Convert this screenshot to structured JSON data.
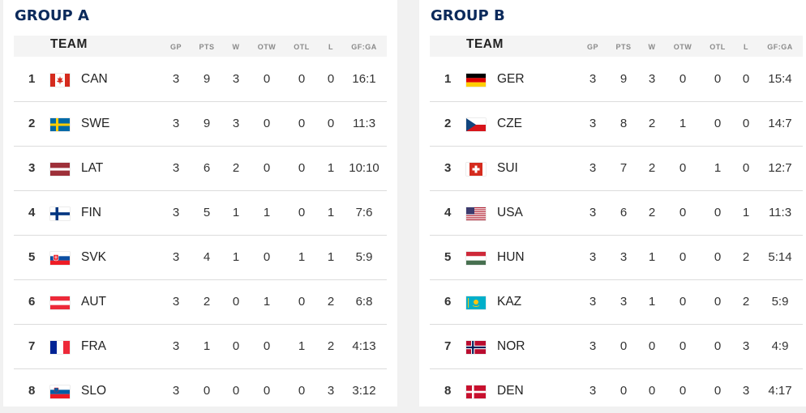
{
  "columns": {
    "team": "TEAM",
    "gp": "GP",
    "pts": "PTS",
    "w": "W",
    "otw": "OTW",
    "otl": "OTL",
    "l": "L",
    "gfga": "GF:GA"
  },
  "groups": [
    {
      "title": "GROUP A",
      "rows": [
        {
          "rank": "1",
          "code": "CAN",
          "flag": "canada-flag-icon",
          "gp": "3",
          "pts": "9",
          "w": "3",
          "otw": "0",
          "otl": "0",
          "l": "0",
          "gfga": "16:1"
        },
        {
          "rank": "2",
          "code": "SWE",
          "flag": "sweden-flag-icon",
          "gp": "3",
          "pts": "9",
          "w": "3",
          "otw": "0",
          "otl": "0",
          "l": "0",
          "gfga": "11:3"
        },
        {
          "rank": "3",
          "code": "LAT",
          "flag": "latvia-flag-icon",
          "gp": "3",
          "pts": "6",
          "w": "2",
          "otw": "0",
          "otl": "0",
          "l": "1",
          "gfga": "10:10"
        },
        {
          "rank": "4",
          "code": "FIN",
          "flag": "finland-flag-icon",
          "gp": "3",
          "pts": "5",
          "w": "1",
          "otw": "1",
          "otl": "0",
          "l": "1",
          "gfga": "7:6"
        },
        {
          "rank": "5",
          "code": "SVK",
          "flag": "slovakia-flag-icon",
          "gp": "3",
          "pts": "4",
          "w": "1",
          "otw": "0",
          "otl": "1",
          "l": "1",
          "gfga": "5:9"
        },
        {
          "rank": "6",
          "code": "AUT",
          "flag": "austria-flag-icon",
          "gp": "3",
          "pts": "2",
          "w": "0",
          "otw": "1",
          "otl": "0",
          "l": "2",
          "gfga": "6:8"
        },
        {
          "rank": "7",
          "code": "FRA",
          "flag": "france-flag-icon",
          "gp": "3",
          "pts": "1",
          "w": "0",
          "otw": "0",
          "otl": "1",
          "l": "2",
          "gfga": "4:13"
        },
        {
          "rank": "8",
          "code": "SLO",
          "flag": "slovenia-flag-icon",
          "gp": "3",
          "pts": "0",
          "w": "0",
          "otw": "0",
          "otl": "0",
          "l": "3",
          "gfga": "3:12"
        }
      ]
    },
    {
      "title": "GROUP B",
      "rows": [
        {
          "rank": "1",
          "code": "GER",
          "flag": "germany-flag-icon",
          "gp": "3",
          "pts": "9",
          "w": "3",
          "otw": "0",
          "otl": "0",
          "l": "0",
          "gfga": "15:4"
        },
        {
          "rank": "2",
          "code": "CZE",
          "flag": "czechia-flag-icon",
          "gp": "3",
          "pts": "8",
          "w": "2",
          "otw": "1",
          "otl": "0",
          "l": "0",
          "gfga": "14:7"
        },
        {
          "rank": "3",
          "code": "SUI",
          "flag": "switzerland-flag-icon",
          "gp": "3",
          "pts": "7",
          "w": "2",
          "otw": "0",
          "otl": "1",
          "l": "0",
          "gfga": "12:7"
        },
        {
          "rank": "4",
          "code": "USA",
          "flag": "usa-flag-icon",
          "gp": "3",
          "pts": "6",
          "w": "2",
          "otw": "0",
          "otl": "0",
          "l": "1",
          "gfga": "11:3"
        },
        {
          "rank": "5",
          "code": "HUN",
          "flag": "hungary-flag-icon",
          "gp": "3",
          "pts": "3",
          "w": "1",
          "otw": "0",
          "otl": "0",
          "l": "2",
          "gfga": "5:14"
        },
        {
          "rank": "6",
          "code": "KAZ",
          "flag": "kazakhstan-flag-icon",
          "gp": "3",
          "pts": "3",
          "w": "1",
          "otw": "0",
          "otl": "0",
          "l": "2",
          "gfga": "5:9"
        },
        {
          "rank": "7",
          "code": "NOR",
          "flag": "norway-flag-icon",
          "gp": "3",
          "pts": "0",
          "w": "0",
          "otw": "0",
          "otl": "0",
          "l": "3",
          "gfga": "4:9"
        },
        {
          "rank": "8",
          "code": "DEN",
          "flag": "denmark-flag-icon",
          "gp": "3",
          "pts": "0",
          "w": "0",
          "otw": "0",
          "otl": "0",
          "l": "3",
          "gfga": "4:17"
        }
      ]
    }
  ],
  "colors": {
    "title": "#0b2a5b",
    "header_bg": "#f4f4f4",
    "divider": "#dcdcdc"
  }
}
